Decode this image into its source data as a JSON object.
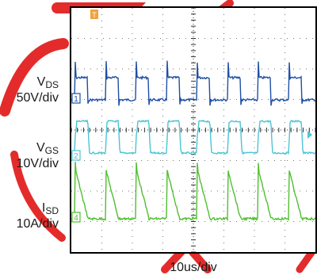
{
  "chart_data": {
    "type": "line",
    "title": "",
    "xlabel": "10us/div",
    "channels": [
      {
        "name": "V",
        "subscript": "DS",
        "scale": "50V/div",
        "marker": "1",
        "color": "#1f4fa6"
      },
      {
        "name": "V",
        "subscript": "GS",
        "scale": "10V/div",
        "marker": "2",
        "color": "#4cc4d4"
      },
      {
        "name": "I",
        "subscript": "SD",
        "scale": "10A/div",
        "marker": "4",
        "color": "#4fbf2f"
      }
    ],
    "trigger_marker": "T",
    "divisions": {
      "x": 8,
      "y": 8
    },
    "pulse_period_divisions": 1.0,
    "pulse_high_fraction": 0.42,
    "grid": true,
    "watermark_color": "#e0202a"
  }
}
